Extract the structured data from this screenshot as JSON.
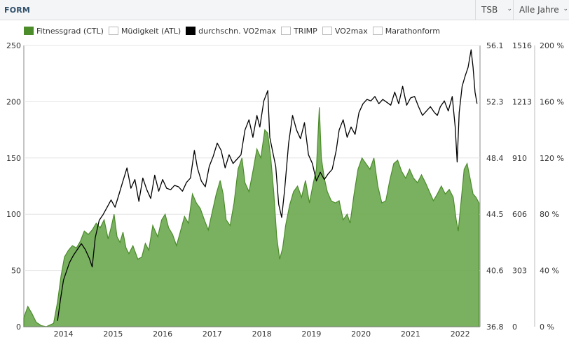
{
  "header": {
    "title": "FORM",
    "dropdown_metric": "TSB",
    "dropdown_year": "Alle Jahre"
  },
  "legend": [
    {
      "label": "Fitnessgrad (CTL)",
      "color": "#4c8c2b",
      "active": true
    },
    {
      "label": "Müdigkeit (ATL)",
      "color": "#ffffff",
      "active": false
    },
    {
      "label": "durchschn. VO2max",
      "color": "#000000",
      "active": true
    },
    {
      "label": "TRIMP",
      "color": "#ffffff",
      "active": false
    },
    {
      "label": "VO2max",
      "color": "#ffffff",
      "active": false
    },
    {
      "label": "Marathonform",
      "color": "#ffffff",
      "active": false
    }
  ],
  "chart_data": {
    "type": "area",
    "x_ticks": [
      "2014",
      "2015",
      "2016",
      "2017",
      "2018",
      "2019",
      "2020",
      "2021",
      "2022"
    ],
    "x_range": [
      "2013-09",
      "2022-12"
    ],
    "axes": {
      "left": {
        "ticks": [
          "0",
          "50",
          "100",
          "150",
          "200",
          "250"
        ],
        "ylim": [
          0,
          250
        ]
      },
      "right_vo2": {
        "ticks": [
          "36.8",
          "40.6",
          "44.5",
          "48.4",
          "52.3",
          "56.1"
        ],
        "ylim": [
          36.8,
          56.1
        ]
      },
      "right_trimp": {
        "ticks": [
          "0",
          "303",
          "606",
          "910",
          "1213",
          "1516"
        ],
        "ylim": [
          0,
          1516
        ]
      },
      "right_percent": {
        "ticks": [
          "0 %",
          "40 %",
          "80 %",
          "120 %",
          "160 %",
          "200 %"
        ],
        "ylim": [
          0,
          200
        ]
      }
    },
    "grid": true,
    "series": [
      {
        "name": "Fitnessgrad (CTL)",
        "axis": "left",
        "style": "area",
        "color": "#4c8c2b",
        "points": [
          [
            2013.7,
            8
          ],
          [
            2013.78,
            18
          ],
          [
            2013.86,
            12
          ],
          [
            2013.95,
            4
          ],
          [
            2014.05,
            1
          ],
          [
            2014.15,
            0
          ],
          [
            2014.3,
            3
          ],
          [
            2014.38,
            22
          ],
          [
            2014.45,
            45
          ],
          [
            2014.52,
            62
          ],
          [
            2014.6,
            68
          ],
          [
            2014.68,
            72
          ],
          [
            2014.76,
            70
          ],
          [
            2014.84,
            76
          ],
          [
            2014.92,
            85
          ],
          [
            2015.0,
            82
          ],
          [
            2015.08,
            86
          ],
          [
            2015.16,
            92
          ],
          [
            2015.24,
            88
          ],
          [
            2015.32,
            95
          ],
          [
            2015.4,
            78
          ],
          [
            2015.46,
            88
          ],
          [
            2015.52,
            100
          ],
          [
            2015.58,
            80
          ],
          [
            2015.64,
            75
          ],
          [
            2015.7,
            84
          ],
          [
            2015.76,
            70
          ],
          [
            2015.82,
            65
          ],
          [
            2015.9,
            72
          ],
          [
            2016.0,
            60
          ],
          [
            2016.08,
            62
          ],
          [
            2016.15,
            74
          ],
          [
            2016.22,
            68
          ],
          [
            2016.3,
            90
          ],
          [
            2016.4,
            80
          ],
          [
            2016.48,
            95
          ],
          [
            2016.55,
            100
          ],
          [
            2016.62,
            88
          ],
          [
            2016.7,
            82
          ],
          [
            2016.78,
            72
          ],
          [
            2016.86,
            85
          ],
          [
            2016.94,
            98
          ],
          [
            2017.02,
            92
          ],
          [
            2017.1,
            118
          ],
          [
            2017.18,
            110
          ],
          [
            2017.26,
            105
          ],
          [
            2017.34,
            95
          ],
          [
            2017.42,
            86
          ],
          [
            2017.5,
            102
          ],
          [
            2017.58,
            118
          ],
          [
            2017.66,
            130
          ],
          [
            2017.72,
            118
          ],
          [
            2017.78,
            95
          ],
          [
            2017.86,
            90
          ],
          [
            2017.94,
            110
          ],
          [
            2018.02,
            140
          ],
          [
            2018.1,
            150
          ],
          [
            2018.16,
            128
          ],
          [
            2018.24,
            120
          ],
          [
            2018.32,
            138
          ],
          [
            2018.4,
            158
          ],
          [
            2018.48,
            150
          ],
          [
            2018.56,
            175
          ],
          [
            2018.62,
            172
          ],
          [
            2018.68,
            150
          ],
          [
            2018.74,
            120
          ],
          [
            2018.8,
            80
          ],
          [
            2018.86,
            60
          ],
          [
            2018.92,
            70
          ],
          [
            2018.98,
            90
          ],
          [
            2019.06,
            108
          ],
          [
            2019.14,
            120
          ],
          [
            2019.22,
            125
          ],
          [
            2019.3,
            115
          ],
          [
            2019.38,
            130
          ],
          [
            2019.46,
            110
          ],
          [
            2019.54,
            128
          ],
          [
            2019.6,
            140
          ],
          [
            2019.66,
            195
          ],
          [
            2019.7,
            150
          ],
          [
            2019.76,
            132
          ],
          [
            2019.82,
            120
          ],
          [
            2019.9,
            112
          ],
          [
            2019.98,
            110
          ],
          [
            2020.06,
            112
          ],
          [
            2020.14,
            95
          ],
          [
            2020.22,
            100
          ],
          [
            2020.28,
            92
          ],
          [
            2020.36,
            118
          ],
          [
            2020.44,
            140
          ],
          [
            2020.52,
            150
          ],
          [
            2020.6,
            145
          ],
          [
            2020.68,
            140
          ],
          [
            2020.76,
            150
          ],
          [
            2020.84,
            125
          ],
          [
            2020.92,
            110
          ],
          [
            2021.0,
            112
          ],
          [
            2021.08,
            130
          ],
          [
            2021.16,
            145
          ],
          [
            2021.24,
            148
          ],
          [
            2021.32,
            138
          ],
          [
            2021.4,
            132
          ],
          [
            2021.48,
            140
          ],
          [
            2021.56,
            132
          ],
          [
            2021.64,
            128
          ],
          [
            2021.72,
            135
          ],
          [
            2021.8,
            128
          ],
          [
            2021.88,
            120
          ],
          [
            2021.96,
            112
          ],
          [
            2022.04,
            118
          ],
          [
            2022.12,
            125
          ],
          [
            2022.2,
            118
          ],
          [
            2022.28,
            122
          ],
          [
            2022.36,
            115
          ],
          [
            2022.42,
            95
          ],
          [
            2022.46,
            85
          ],
          [
            2022.52,
            112
          ],
          [
            2022.58,
            140
          ],
          [
            2022.64,
            145
          ],
          [
            2022.7,
            132
          ],
          [
            2022.76,
            118
          ],
          [
            2022.82,
            115
          ],
          [
            2022.88,
            110
          ]
        ]
      },
      {
        "name": "durchschn. VO2max",
        "axis": "right_vo2",
        "style": "line",
        "color": "#000000",
        "points": [
          [
            2014.38,
            37.2
          ],
          [
            2014.44,
            38.7
          ],
          [
            2014.5,
            40.0
          ],
          [
            2014.56,
            40.6
          ],
          [
            2014.62,
            41.2
          ],
          [
            2014.7,
            41.7
          ],
          [
            2014.78,
            42.1
          ],
          [
            2014.86,
            42.5
          ],
          [
            2014.94,
            42.1
          ],
          [
            2015.02,
            41.5
          ],
          [
            2015.08,
            40.9
          ],
          [
            2015.14,
            42.9
          ],
          [
            2015.22,
            44.1
          ],
          [
            2015.3,
            44.5
          ],
          [
            2015.38,
            45.0
          ],
          [
            2015.46,
            45.5
          ],
          [
            2015.54,
            45.0
          ],
          [
            2015.62,
            45.9
          ],
          [
            2015.7,
            46.8
          ],
          [
            2015.78,
            47.7
          ],
          [
            2015.86,
            46.3
          ],
          [
            2015.94,
            46.9
          ],
          [
            2016.02,
            45.4
          ],
          [
            2016.1,
            47.0
          ],
          [
            2016.18,
            46.2
          ],
          [
            2016.26,
            45.6
          ],
          [
            2016.34,
            47.2
          ],
          [
            2016.42,
            46.1
          ],
          [
            2016.5,
            46.9
          ],
          [
            2016.58,
            46.3
          ],
          [
            2016.66,
            46.2
          ],
          [
            2016.74,
            46.5
          ],
          [
            2016.82,
            46.4
          ],
          [
            2016.9,
            46.1
          ],
          [
            2016.98,
            46.7
          ],
          [
            2017.06,
            47.0
          ],
          [
            2017.14,
            48.9
          ],
          [
            2017.2,
            47.7
          ],
          [
            2017.28,
            46.8
          ],
          [
            2017.36,
            46.4
          ],
          [
            2017.44,
            47.8
          ],
          [
            2017.52,
            48.5
          ],
          [
            2017.6,
            49.4
          ],
          [
            2017.68,
            48.9
          ],
          [
            2017.76,
            47.7
          ],
          [
            2017.84,
            48.6
          ],
          [
            2017.92,
            48.0
          ],
          [
            2018.0,
            48.3
          ],
          [
            2018.08,
            48.6
          ],
          [
            2018.16,
            50.3
          ],
          [
            2018.24,
            51.0
          ],
          [
            2018.32,
            49.8
          ],
          [
            2018.4,
            51.3
          ],
          [
            2018.46,
            50.5
          ],
          [
            2018.54,
            52.3
          ],
          [
            2018.62,
            53.0
          ],
          [
            2018.66,
            49.8
          ],
          [
            2018.72,
            48.8
          ],
          [
            2018.78,
            47.8
          ],
          [
            2018.84,
            45.2
          ],
          [
            2018.9,
            44.3
          ],
          [
            2018.96,
            46.2
          ],
          [
            2019.04,
            49.4
          ],
          [
            2019.12,
            51.3
          ],
          [
            2019.2,
            50.3
          ],
          [
            2019.28,
            49.7
          ],
          [
            2019.36,
            50.8
          ],
          [
            2019.44,
            48.6
          ],
          [
            2019.52,
            48.0
          ],
          [
            2019.6,
            46.8
          ],
          [
            2019.68,
            47.4
          ],
          [
            2019.76,
            46.9
          ],
          [
            2019.84,
            47.3
          ],
          [
            2019.92,
            47.6
          ],
          [
            2020.0,
            48.9
          ],
          [
            2020.06,
            50.3
          ],
          [
            2020.14,
            51.0
          ],
          [
            2020.22,
            49.8
          ],
          [
            2020.3,
            50.5
          ],
          [
            2020.38,
            50.0
          ],
          [
            2020.46,
            51.5
          ],
          [
            2020.54,
            52.1
          ],
          [
            2020.62,
            52.4
          ],
          [
            2020.7,
            52.3
          ],
          [
            2020.78,
            52.6
          ],
          [
            2020.86,
            52.1
          ],
          [
            2020.94,
            52.4
          ],
          [
            2021.02,
            52.2
          ],
          [
            2021.1,
            52.0
          ],
          [
            2021.18,
            52.9
          ],
          [
            2021.26,
            52.1
          ],
          [
            2021.34,
            53.3
          ],
          [
            2021.42,
            52.0
          ],
          [
            2021.5,
            52.5
          ],
          [
            2021.58,
            52.6
          ],
          [
            2021.66,
            51.9
          ],
          [
            2021.74,
            51.3
          ],
          [
            2021.82,
            51.6
          ],
          [
            2021.9,
            51.9
          ],
          [
            2021.98,
            51.5
          ],
          [
            2022.04,
            51.3
          ],
          [
            2022.1,
            51.9
          ],
          [
            2022.18,
            52.3
          ],
          [
            2022.26,
            51.6
          ],
          [
            2022.34,
            52.6
          ],
          [
            2022.4,
            50.5
          ],
          [
            2022.44,
            48.1
          ],
          [
            2022.48,
            51.5
          ],
          [
            2022.54,
            53.3
          ],
          [
            2022.6,
            54.0
          ],
          [
            2022.66,
            54.6
          ],
          [
            2022.72,
            55.8
          ],
          [
            2022.76,
            54.6
          ],
          [
            2022.8,
            52.9
          ],
          [
            2022.84,
            52.1
          ]
        ]
      }
    ]
  }
}
